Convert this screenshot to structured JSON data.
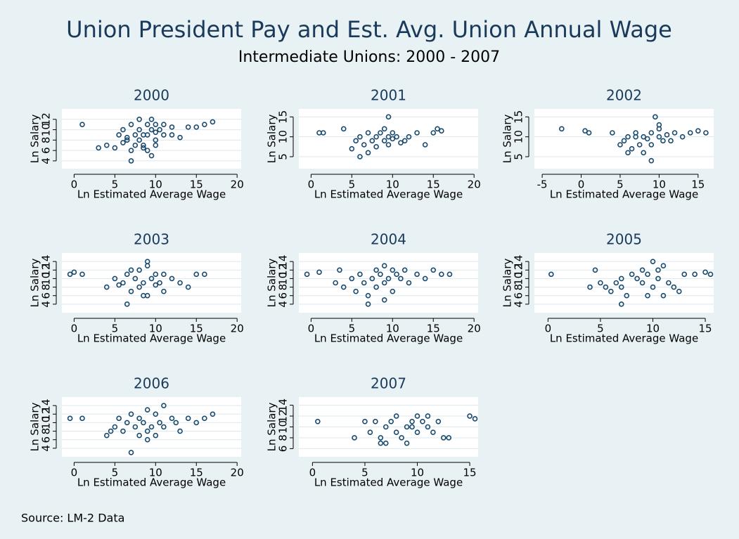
{
  "title": "Union President Pay and Est. Avg. Union Annual Wage",
  "subtitle": "Intermediate Unions: 2000 - 2007",
  "note": "Source: LM-2 Data",
  "chart_data": [
    {
      "type": "scatter",
      "title": "2000",
      "x_label": "Ln Estimated Average Wage",
      "y_label": "Ln Salary",
      "color": "#1a4a6e",
      "grid": true,
      "xlim": [
        -1.5,
        20.5
      ],
      "ylim": [
        2.5,
        14
      ],
      "xticks": [
        0,
        5,
        10,
        15,
        20
      ],
      "yticks": [
        4,
        6,
        8,
        10,
        12
      ],
      "x": [
        1,
        3,
        4,
        5,
        5.5,
        6,
        6,
        6.5,
        7,
        7,
        7.5,
        7.5,
        8,
        8,
        8,
        8.5,
        8.5,
        9,
        9,
        9,
        9.5,
        9.5,
        10,
        10,
        10,
        10.5,
        11,
        11,
        12,
        12,
        13,
        14,
        15,
        16,
        17,
        7,
        8.5,
        9.5,
        6.5,
        10
      ],
      "y": [
        11,
        6.5,
        7,
        6.5,
        9,
        10,
        7.5,
        8,
        11,
        6,
        9,
        7,
        10,
        8,
        12,
        9,
        6.5,
        11,
        9,
        6,
        10,
        12,
        11,
        8,
        9.5,
        10,
        9,
        11,
        9,
        10.5,
        8.5,
        10.5,
        10.5,
        11,
        11.5,
        4,
        7,
        5,
        8.5,
        7
      ]
    },
    {
      "type": "scatter",
      "title": "2001",
      "x_label": "Ln Estimated Average Wage",
      "y_label": "Ln Salary",
      "color": "#1a4a6e",
      "grid": true,
      "xlim": [
        -1.5,
        20.5
      ],
      "ylim": [
        2,
        17
      ],
      "xticks": [
        0,
        5,
        10,
        15,
        20
      ],
      "yticks": [
        5,
        10,
        15
      ],
      "x": [
        1,
        1.5,
        4,
        5,
        5.5,
        6,
        6.5,
        7,
        7,
        7.5,
        8,
        8,
        8.5,
        9,
        9,
        9.5,
        9.5,
        10,
        10,
        10.5,
        11,
        11.5,
        12,
        13,
        14,
        15,
        15.5,
        16,
        6,
        9.5
      ],
      "y": [
        11,
        11,
        12,
        7,
        9,
        10,
        8,
        11,
        6,
        9,
        10,
        7.5,
        11,
        9,
        12,
        10,
        8,
        11,
        9.5,
        10,
        8.5,
        9,
        10,
        11,
        8,
        11,
        12,
        11.5,
        5,
        15
      ]
    },
    {
      "type": "scatter",
      "title": "2002",
      "x_label": "Ln Estimated Average Wage",
      "y_label": "Ln Salary",
      "color": "#1a4a6e",
      "grid": true,
      "xlim": [
        -6,
        17
      ],
      "ylim": [
        2,
        17
      ],
      "xticks": [
        -5,
        0,
        5,
        10,
        15
      ],
      "yticks": [
        5,
        10,
        15
      ],
      "x": [
        -2.5,
        0.5,
        1,
        4,
        5,
        5.5,
        6,
        6.5,
        7,
        7.5,
        8,
        8,
        8.5,
        9,
        9,
        9.5,
        10,
        10,
        10.5,
        11,
        11.5,
        12,
        13,
        14,
        15,
        16,
        6,
        9,
        7,
        10
      ],
      "y": [
        12,
        11.5,
        11,
        11,
        8,
        9,
        10,
        7,
        11,
        8,
        10,
        6,
        9.5,
        11,
        8,
        15,
        10,
        12,
        9,
        10.5,
        9,
        11,
        10,
        11,
        11.5,
        11,
        6,
        4,
        10,
        13
      ]
    },
    {
      "type": "scatter",
      "title": "2003",
      "x_label": "Ln Estimated Average Wage",
      "y_label": "Ln Salary",
      "color": "#1a4a6e",
      "grid": true,
      "xlim": [
        -1.5,
        20.5
      ],
      "ylim": [
        2,
        16
      ],
      "xticks": [
        0,
        5,
        10,
        15,
        20
      ],
      "yticks": [
        4,
        6,
        8,
        10,
        12,
        14
      ],
      "x": [
        -0.5,
        0,
        1,
        4,
        5,
        5.5,
        6,
        6.5,
        7,
        7.5,
        8,
        8,
        8.5,
        9,
        9,
        9.5,
        10,
        10,
        10.5,
        11,
        12,
        13,
        14,
        15,
        16,
        6.5,
        8.5,
        9,
        7,
        11
      ],
      "y": [
        11,
        11.5,
        11,
        8,
        10,
        8.5,
        9,
        11,
        7,
        10,
        12,
        8,
        9,
        14,
        6,
        10,
        11,
        8.5,
        9,
        11,
        10,
        9,
        8,
        11,
        11,
        4,
        6,
        13,
        12,
        7
      ]
    },
    {
      "type": "scatter",
      "title": "2004",
      "x_label": "Ln Estimated Average Wage",
      "y_label": "Ln Salary",
      "color": "#1a4a6e",
      "grid": true,
      "xlim": [
        -1.5,
        20.5
      ],
      "ylim": [
        2,
        16
      ],
      "xticks": [
        0,
        5,
        10,
        15,
        20
      ],
      "yticks": [
        4,
        6,
        8,
        10,
        12,
        14
      ],
      "x": [
        -0.5,
        1,
        3,
        3.5,
        4,
        5,
        5.5,
        6,
        6.5,
        7,
        7.5,
        8,
        8,
        8.5,
        9,
        9,
        9.5,
        10,
        10,
        10.5,
        11,
        11.5,
        12,
        13,
        14,
        15,
        16,
        17,
        7,
        9
      ],
      "y": [
        11,
        11.5,
        9,
        12,
        8,
        10,
        7,
        11,
        9,
        6,
        10,
        12,
        8,
        11,
        9,
        13,
        10,
        12,
        7,
        11,
        10,
        12,
        9,
        11,
        10,
        12,
        11,
        11,
        4,
        5
      ]
    },
    {
      "type": "scatter",
      "title": "2005",
      "x_label": "Ln Estimated Average Wage",
      "y_label": "Ln Salary",
      "color": "#1a4a6e",
      "grid": true,
      "xlim": [
        -1.3,
        15.8
      ],
      "ylim": [
        2,
        16
      ],
      "xticks": [
        0,
        5,
        10,
        15
      ],
      "yticks": [
        4,
        6,
        8,
        10,
        12,
        14
      ],
      "x": [
        0.3,
        4,
        4.5,
        5,
        5.5,
        6,
        6.5,
        7,
        7,
        7.5,
        8,
        8.5,
        9,
        9,
        9.5,
        10,
        10,
        10.5,
        11,
        11,
        11.5,
        12,
        12.5,
        13,
        14,
        15,
        15.5,
        7,
        9.5,
        10.5
      ],
      "y": [
        11,
        8,
        12,
        9,
        8,
        7,
        9,
        8,
        4,
        6,
        11,
        10,
        9,
        12,
        11,
        14,
        8,
        10,
        13,
        6,
        9,
        8,
        7,
        11,
        11,
        11.5,
        11,
        10,
        6,
        12
      ]
    },
    {
      "type": "scatter",
      "title": "2006",
      "x_label": "Ln Estimated Average Wage",
      "y_label": "Ln Salary",
      "color": "#1a4a6e",
      "grid": true,
      "xlim": [
        -1.5,
        20.5
      ],
      "ylim": [
        2,
        16
      ],
      "xticks": [
        0,
        5,
        10,
        15,
        20
      ],
      "yticks": [
        4,
        6,
        8,
        10,
        12,
        14
      ],
      "x": [
        -0.5,
        1,
        4,
        4.5,
        5,
        5.5,
        6,
        6.5,
        7,
        7.5,
        8,
        8,
        8.5,
        9,
        9,
        9.5,
        10,
        10,
        10.5,
        11,
        11,
        12,
        12.5,
        13,
        14,
        15,
        16,
        17,
        7,
        9
      ],
      "y": [
        11,
        11,
        7,
        8,
        9,
        11,
        8,
        10,
        12,
        9,
        7,
        11,
        10,
        13,
        8,
        9,
        12,
        7,
        10,
        14,
        9,
        11,
        10,
        8,
        11,
        10,
        11,
        12,
        3,
        6
      ]
    },
    {
      "type": "scatter",
      "title": "2007",
      "x_label": "Ln Estimated Average Wage",
      "y_label": "Ln Salary",
      "color": "#1a4a6e",
      "grid": true,
      "xlim": [
        -1.3,
        15.8
      ],
      "ylim": [
        4.5,
        15.5
      ],
      "xticks": [
        0,
        5,
        10,
        15
      ],
      "yticks": [
        6,
        8,
        10,
        12,
        14
      ],
      "x": [
        0.5,
        4,
        5,
        5.5,
        6,
        6.5,
        7,
        7,
        7.5,
        8,
        8,
        8.5,
        9,
        9,
        9.5,
        10,
        10,
        10.5,
        11,
        11,
        11.5,
        12,
        12.5,
        13,
        15,
        15.5,
        6.5,
        9.5
      ],
      "y": [
        11,
        8,
        11,
        9,
        11,
        8,
        10,
        7,
        11,
        9,
        12,
        8,
        10,
        7,
        11,
        12,
        9,
        11,
        12,
        10,
        9,
        11,
        8,
        8,
        12,
        11.5,
        7,
        10
      ]
    }
  ]
}
